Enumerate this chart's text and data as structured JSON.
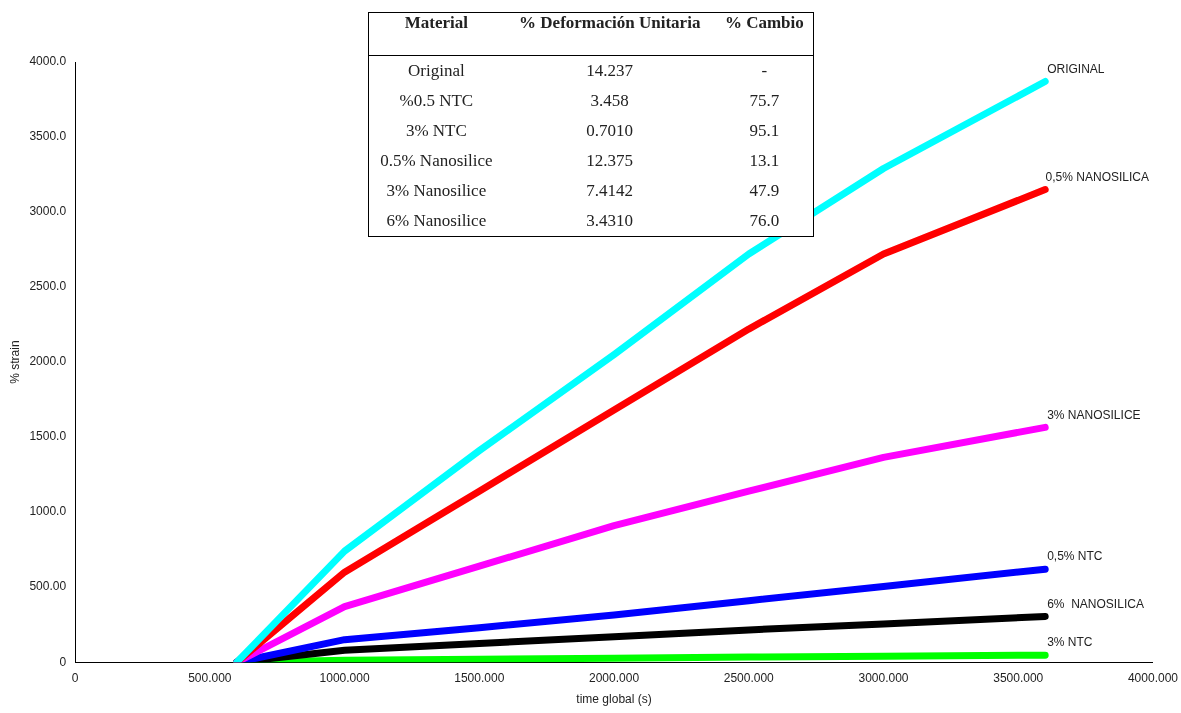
{
  "chart_data": {
    "type": "line",
    "xlabel": "time global (s)",
    "ylabel": "% strain",
    "xlim": [
      0,
      4000
    ],
    "xticks": [
      0,
      {
        "value": 500,
        "label": "500.000"
      },
      {
        "value": 1000,
        "label": "1000.000"
      },
      {
        "value": 1500,
        "label": "1500.000"
      },
      {
        "value": 2000,
        "label": "2000.000"
      },
      {
        "value": 2500,
        "label": "2500.000"
      },
      {
        "value": 3000,
        "label": "3000.000"
      },
      {
        "value": 3500,
        "label": "3500.000"
      },
      {
        "value": 4000,
        "label": "4000.000"
      }
    ],
    "ylim": [
      0,
      4000
    ],
    "yticks": [
      0,
      {
        "value": 500,
        "label": "500.00"
      },
      {
        "value": 1000,
        "label": "1000.0"
      },
      {
        "value": 1500,
        "label": "1500.0"
      },
      {
        "value": 2000,
        "label": "2000.0"
      },
      {
        "value": 2500,
        "label": "2500.0"
      },
      {
        "value": 3000,
        "label": "3000.0"
      },
      {
        "value": 3500,
        "label": "3500.0"
      },
      {
        "value": 4000,
        "label": "4000.0"
      }
    ],
    "x": [
      600,
      1000,
      1500,
      2000,
      2500,
      3000,
      3600
    ],
    "series": [
      {
        "name": "ORIGINAL",
        "color": "#00ffff",
        "values": [
          0,
          740,
          1410,
          2050,
          2720,
          3290,
          3870
        ]
      },
      {
        "name": "0,5% NANOSILICA",
        "color": "#ff0000",
        "values": [
          0,
          600,
          1140,
          1680,
          2220,
          2720,
          3150
        ]
      },
      {
        "name": "3% NANOSILICE",
        "color": "#ff00ff",
        "values": [
          0,
          370,
          640,
          910,
          1140,
          1365,
          1565
        ]
      },
      {
        "name": "0,5% NTC",
        "color": "#0000ff",
        "values": [
          0,
          150,
          230,
          315,
          410,
          505,
          620
        ]
      },
      {
        "name": "6%  NANOSILICA",
        "color": "#000000",
        "values": [
          0,
          80,
          125,
          170,
          215,
          255,
          305
        ]
      },
      {
        "name": "3% NTC",
        "color": "#00ff00",
        "values": [
          0,
          13,
          20,
          27,
          34,
          40,
          47
        ]
      }
    ],
    "grid": false,
    "legend": false,
    "marker": "none",
    "line_style": "solid",
    "annotations": [
      "Material",
      "% Deformación Unitaria",
      "% Cambio",
      "Original",
      "14.237",
      "-",
      "%0.5 NTC",
      "3.458",
      "75.7",
      "3% NTC",
      "0.7010",
      "95.1",
      "0.5% Nanosilice",
      "12.375",
      "13.1",
      "3% Nanosilice",
      "7.4142",
      "47.9",
      "6% Nanosilice",
      "3.4310",
      "76.0"
    ]
  }
}
